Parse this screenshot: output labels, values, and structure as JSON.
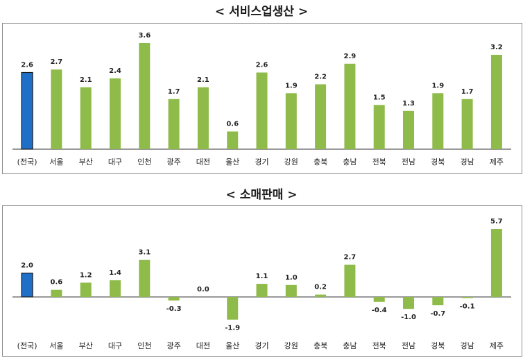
{
  "charts": {
    "service": {
      "title": "< 서비스업생산 >"
    },
    "retail": {
      "title": "< 소매판매 >"
    }
  },
  "colors": {
    "national": "#1f6fc6",
    "national_outline": "#1a1a1a",
    "region": "#8fbb4a",
    "axis": "#333333"
  },
  "chart_data": [
    {
      "type": "bar",
      "title": "< 서비스업생산 >",
      "categories": [
        "(전국)",
        "서울",
        "부산",
        "대구",
        "인천",
        "광주",
        "대전",
        "울산",
        "경기",
        "강원",
        "충북",
        "충남",
        "전북",
        "전남",
        "경북",
        "경남",
        "제주"
      ],
      "values": [
        2.6,
        2.7,
        2.1,
        2.4,
        3.6,
        1.7,
        2.1,
        0.6,
        2.6,
        1.9,
        2.2,
        2.9,
        1.5,
        1.3,
        1.9,
        1.7,
        3.2
      ],
      "value_labels": [
        "2.6",
        "2.7",
        "2.1",
        "2.4",
        "3.6",
        "1.7",
        "2.1",
        "0.6",
        "2.6",
        "1.9",
        "2.2",
        "2.9",
        "1.5",
        "1.3",
        "1.9",
        "1.7",
        "3.2"
      ],
      "highlight_index": 0,
      "ylim": [
        0,
        3.6
      ]
    },
    {
      "type": "bar",
      "title": "< 소매판매 >",
      "categories": [
        "(전국)",
        "서울",
        "부산",
        "대구",
        "인천",
        "광주",
        "대전",
        "울산",
        "경기",
        "강원",
        "충북",
        "충남",
        "전북",
        "전남",
        "경북",
        "경남",
        "제주"
      ],
      "values": [
        2.0,
        0.6,
        1.2,
        1.4,
        3.1,
        -0.3,
        0.0,
        -1.9,
        1.1,
        1.0,
        0.2,
        2.7,
        -0.4,
        -1.0,
        -0.7,
        -0.1,
        5.7
      ],
      "value_labels": [
        "2.0",
        "0.6",
        "1.2",
        "1.4",
        "3.1",
        "-0.3",
        "0.0",
        "-1.9",
        "1.1",
        "1.0",
        "0.2",
        "2.7",
        "-0.4",
        "-1.0",
        "-0.7",
        "-0.1",
        "5.7"
      ],
      "highlight_index": 0,
      "ylim": [
        -1.9,
        5.7
      ]
    }
  ]
}
